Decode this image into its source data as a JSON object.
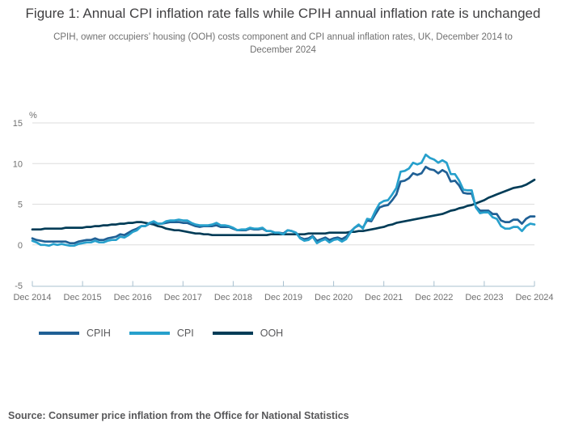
{
  "header": {
    "title": "Figure 1: Annual CPI inflation rate falls while CPIH annual inflation rate is unchanged",
    "subtitle": "CPIH, owner occupiers’ housing (OOH) costs component and CPI annual inflation rates, UK, December 2014 to December 2024"
  },
  "chart_data": {
    "type": "line",
    "title": "Figure 1: Annual CPI inflation rate falls while CPIH annual inflation rate is unchanged",
    "xlabel": "",
    "ylabel": "%",
    "unit_label": "%",
    "x_domain": "monthly points, December 2014 to December 2024",
    "x_tick_labels": [
      "Dec 2014",
      "Dec 2015",
      "Dec 2016",
      "Dec 2017",
      "Dec 2018",
      "Dec 2019",
      "Dec 2020",
      "Dec 2021",
      "Dec 2022",
      "Dec 2023",
      "Dec 2024"
    ],
    "months_per_tick": 12,
    "ylim": [
      -5,
      15
    ],
    "y_ticks": [
      15,
      10,
      5,
      0,
      -5
    ],
    "grid": "horizontal only",
    "legend_position": "below chart, left aligned",
    "series": [
      {
        "name": "CPIH",
        "color": "#206095",
        "values": [
          0.8,
          0.6,
          0.5,
          0.4,
          0.4,
          0.4,
          0.4,
          0.4,
          0.4,
          0.2,
          0.2,
          0.4,
          0.5,
          0.6,
          0.6,
          0.8,
          0.6,
          0.6,
          0.8,
          0.9,
          1.0,
          1.3,
          1.2,
          1.5,
          1.8,
          2.0,
          2.3,
          2.3,
          2.6,
          2.7,
          2.6,
          2.6,
          2.7,
          2.8,
          2.8,
          2.8,
          2.7,
          2.7,
          2.5,
          2.3,
          2.2,
          2.3,
          2.3,
          2.3,
          2.4,
          2.2,
          2.2,
          2.2,
          2.0,
          1.8,
          1.8,
          1.8,
          2.0,
          1.9,
          1.9,
          2.0,
          1.7,
          1.7,
          1.5,
          1.5,
          1.4,
          1.8,
          1.7,
          1.5,
          0.9,
          0.7,
          0.8,
          1.1,
          0.5,
          0.7,
          0.9,
          0.6,
          0.8,
          0.9,
          0.7,
          1.0,
          1.6,
          2.1,
          2.4,
          2.1,
          3.0,
          2.9,
          3.8,
          4.6,
          4.8,
          4.9,
          5.5,
          6.2,
          7.8,
          7.9,
          8.2,
          8.8,
          8.6,
          8.8,
          9.6,
          9.3,
          9.2,
          8.8,
          9.2,
          8.9,
          7.8,
          7.9,
          7.3,
          6.4,
          6.3,
          6.3,
          4.7,
          4.2,
          4.2,
          4.2,
          3.8,
          3.8,
          3.0,
          2.8,
          2.8,
          3.1,
          3.1,
          2.6,
          3.2,
          3.5,
          3.5
        ]
      },
      {
        "name": "CPI",
        "color": "#27A0CC",
        "values": [
          0.5,
          0.3,
          0.0,
          0.0,
          -0.1,
          0.1,
          0.0,
          0.1,
          0.0,
          -0.1,
          -0.1,
          0.1,
          0.2,
          0.3,
          0.3,
          0.5,
          0.3,
          0.3,
          0.5,
          0.6,
          0.6,
          1.0,
          0.9,
          1.2,
          1.6,
          1.8,
          2.3,
          2.3,
          2.7,
          2.9,
          2.6,
          2.6,
          2.9,
          3.0,
          3.0,
          3.1,
          3.0,
          3.0,
          2.7,
          2.5,
          2.4,
          2.4,
          2.4,
          2.5,
          2.7,
          2.4,
          2.4,
          2.3,
          2.1,
          1.8,
          1.9,
          1.9,
          2.1,
          2.0,
          2.0,
          2.1,
          1.7,
          1.7,
          1.5,
          1.5,
          1.3,
          1.8,
          1.7,
          1.5,
          0.8,
          0.5,
          0.6,
          1.0,
          0.2,
          0.5,
          0.7,
          0.3,
          0.6,
          0.7,
          0.4,
          0.7,
          1.5,
          2.1,
          2.5,
          2.0,
          3.2,
          3.1,
          4.2,
          5.1,
          5.4,
          5.5,
          6.2,
          7.0,
          9.0,
          9.1,
          9.4,
          10.1,
          9.9,
          10.1,
          11.1,
          10.7,
          10.5,
          10.1,
          10.4,
          10.1,
          8.7,
          8.7,
          7.9,
          6.8,
          6.7,
          6.7,
          4.6,
          3.9,
          4.0,
          4.0,
          3.4,
          3.2,
          2.3,
          2.0,
          2.0,
          2.2,
          2.2,
          1.7,
          2.3,
          2.6,
          2.5
        ]
      },
      {
        "name": "OOH",
        "color": "#003C57",
        "values": [
          1.9,
          1.9,
          1.9,
          2.0,
          2.0,
          2.0,
          2.0,
          2.0,
          2.1,
          2.1,
          2.1,
          2.1,
          2.1,
          2.2,
          2.2,
          2.3,
          2.3,
          2.4,
          2.4,
          2.5,
          2.5,
          2.6,
          2.6,
          2.7,
          2.7,
          2.8,
          2.8,
          2.7,
          2.6,
          2.5,
          2.3,
          2.2,
          2.0,
          1.9,
          1.8,
          1.8,
          1.7,
          1.6,
          1.5,
          1.4,
          1.4,
          1.3,
          1.3,
          1.2,
          1.2,
          1.2,
          1.2,
          1.2,
          1.2,
          1.2,
          1.2,
          1.2,
          1.2,
          1.2,
          1.2,
          1.2,
          1.2,
          1.3,
          1.3,
          1.3,
          1.3,
          1.3,
          1.3,
          1.3,
          1.3,
          1.3,
          1.4,
          1.4,
          1.4,
          1.4,
          1.4,
          1.5,
          1.5,
          1.5,
          1.5,
          1.5,
          1.6,
          1.6,
          1.7,
          1.7,
          1.8,
          1.9,
          2.0,
          2.1,
          2.2,
          2.4,
          2.5,
          2.7,
          2.8,
          2.9,
          3.0,
          3.1,
          3.2,
          3.3,
          3.4,
          3.5,
          3.6,
          3.7,
          3.8,
          4.0,
          4.2,
          4.3,
          4.5,
          4.6,
          4.8,
          4.9,
          5.1,
          5.3,
          5.5,
          5.8,
          6.0,
          6.2,
          6.4,
          6.6,
          6.8,
          7.0,
          7.1,
          7.2,
          7.4,
          7.7,
          8.0
        ]
      }
    ],
    "draw_order": [
      "OOH",
      "CPIH",
      "CPI"
    ],
    "colors": {
      "gridline": "#dedede",
      "axis": "#a8c0cf",
      "axis_text": "#707070"
    }
  },
  "source": {
    "text": "Source: Consumer price inflation from the Office for National Statistics"
  }
}
